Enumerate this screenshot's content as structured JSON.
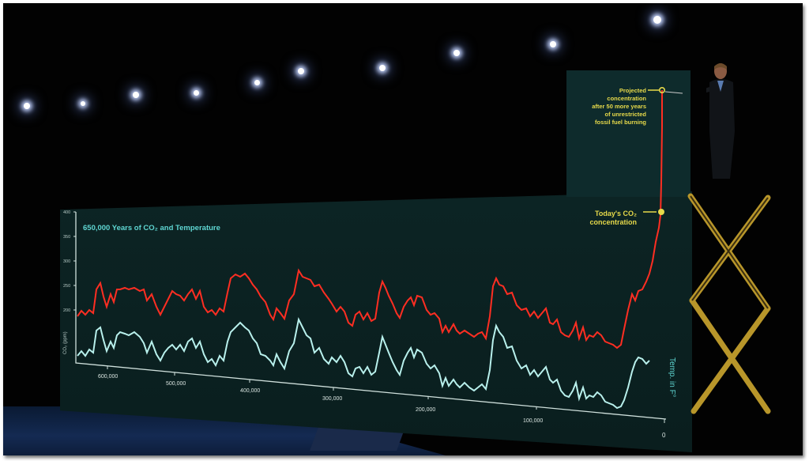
{
  "chart": {
    "title": "650,000 Years of CO₂ and Temperature",
    "y_axis_label": "CO₂ (ppm)",
    "temp_label": "Temp. in F°",
    "projected_label": [
      "Projected",
      "concentration",
      "after 50 more years",
      "of unrestricted",
      "fossil fuel burning"
    ],
    "today_label": [
      "Today's CO₂",
      "concentration"
    ],
    "y_ticks": [
      "400",
      "350",
      "300",
      "250",
      "200"
    ],
    "x_ticks": [
      "600,000",
      "500,000",
      "400,000",
      "300,000",
      "200,000",
      "100,000",
      "0"
    ]
  },
  "colors": {
    "co2_line": "#ff2e22",
    "temp_line": "#b8f0ec",
    "label_yellow": "#e6d94a",
    "title_cyan": "#5fd6d2",
    "screen": "#0c2424"
  }
}
